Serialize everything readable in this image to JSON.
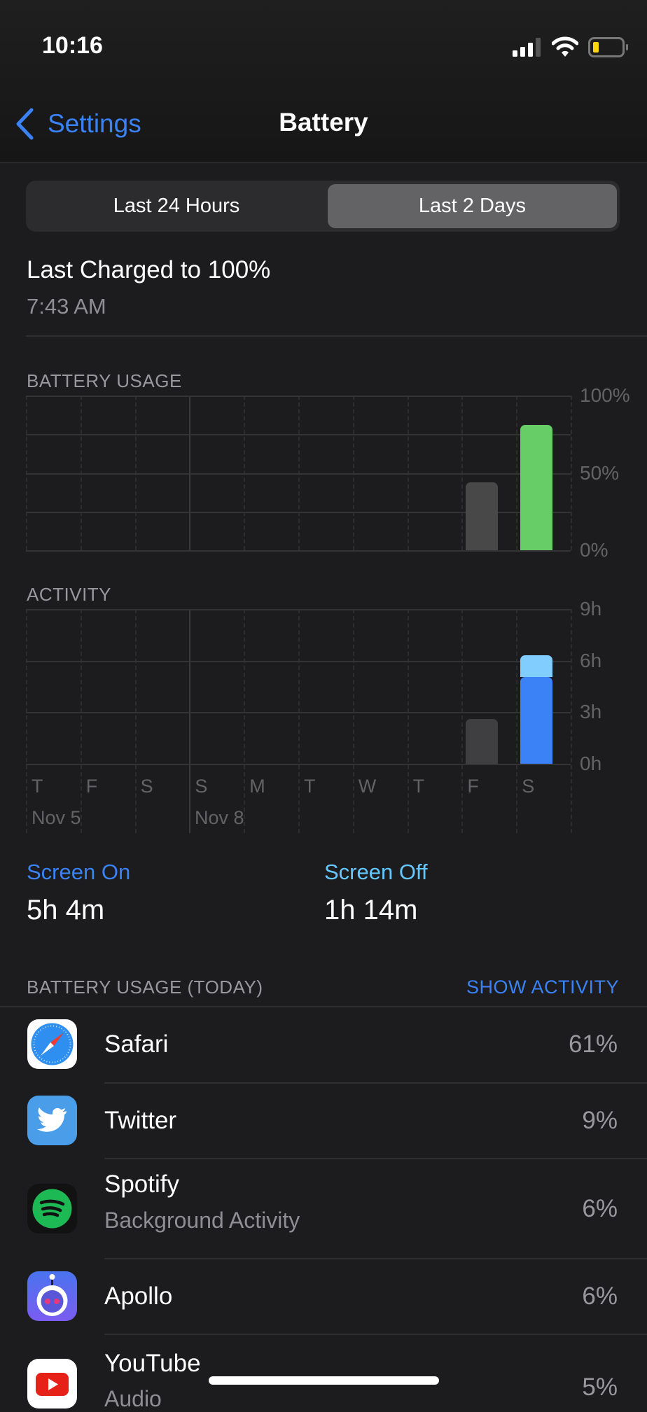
{
  "status_bar": {
    "time": "10:16",
    "battery_color": "#ffd60a"
  },
  "nav": {
    "back_label": "Settings",
    "title": "Battery"
  },
  "segments": [
    {
      "label": "Last 24 Hours",
      "selected": false
    },
    {
      "label": "Last 2 Days",
      "selected": true
    }
  ],
  "last_charged": {
    "title": "Last Charged to 100%",
    "time": "7:43 AM"
  },
  "chart_data": [
    {
      "type": "bar",
      "title": "BATTERY USAGE",
      "y_ticks": [
        "100%",
        "50%",
        "0%"
      ],
      "ylim": [
        0,
        100
      ],
      "categories": [
        "T",
        "F",
        "S",
        "S",
        "M",
        "T",
        "W",
        "T",
        "F",
        "S"
      ],
      "values": [
        0,
        0,
        0,
        0,
        0,
        0,
        0,
        0,
        44,
        81
      ],
      "colors": [
        "#484848",
        "#484848",
        "#484848",
        "#484848",
        "#484848",
        "#484848",
        "#484848",
        "#484848",
        "#484848",
        "#67ce67"
      ]
    },
    {
      "type": "bar",
      "title": "ACTIVITY",
      "y_ticks": [
        "9h",
        "6h",
        "3h",
        "0h"
      ],
      "ylim": [
        0,
        9
      ],
      "categories": [
        "T",
        "F",
        "S",
        "S",
        "M",
        "T",
        "W",
        "T",
        "F",
        "S"
      ],
      "date_labels": [
        "Nov 5",
        "Nov 8"
      ],
      "series": [
        {
          "name": "Screen On",
          "values": [
            0,
            0,
            0,
            0,
            0,
            0,
            0,
            0,
            2.6,
            5.07
          ],
          "color": "#3a82f6"
        },
        {
          "name": "Screen Off",
          "values": [
            0,
            0,
            0,
            0,
            0,
            0,
            0,
            0,
            0,
            1.23
          ],
          "color": "#80cdfe"
        }
      ]
    }
  ],
  "summary": [
    {
      "label": "Screen On",
      "value": "5h 4m",
      "color": "#3a82f6"
    },
    {
      "label": "Screen Off",
      "value": "1h 14m",
      "color": "#64c8ff"
    }
  ],
  "usage": {
    "header": "BATTERY USAGE (TODAY)",
    "action": "SHOW ACTIVITY",
    "apps": [
      {
        "name": "Safari",
        "sub": "",
        "pct": "61%",
        "icon": "safari-icon"
      },
      {
        "name": "Twitter",
        "sub": "",
        "pct": "9%",
        "icon": "twitter-icon"
      },
      {
        "name": "Spotify",
        "sub": "Background Activity",
        "pct": "6%",
        "icon": "spotify-icon"
      },
      {
        "name": "Apollo",
        "sub": "",
        "pct": "6%",
        "icon": "apollo-icon"
      },
      {
        "name": "YouTube",
        "sub": "Audio",
        "pct": "5%",
        "icon": "youtube-icon"
      }
    ]
  },
  "accent": "#3a82f6"
}
